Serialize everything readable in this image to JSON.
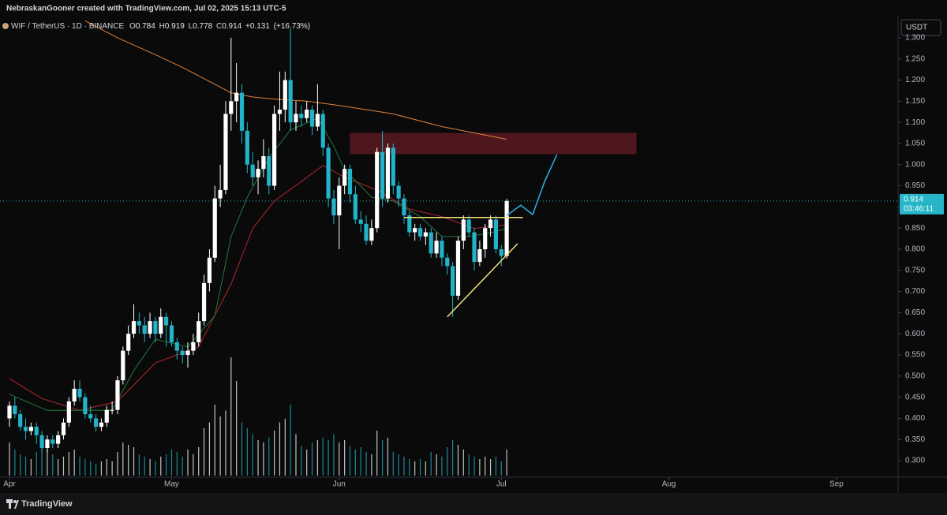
{
  "chart_data": {
    "type": "candlestick",
    "credit": "NebraskanGooner created with TradingView.com, Jul 02, 2025 15:13 UTC-5",
    "symbol": "WIF / TetherUS · 1D · BINANCE",
    "ohlc_labels": [
      "O",
      "H",
      "L",
      "C"
    ],
    "change": "+0.131",
    "change_pct": "(+16.73%)",
    "currency": "USDT",
    "countdown": "03:46:11",
    "brand": "TradingView",
    "up_color": "#ffffff",
    "down_color": "#22b3c9",
    "xlim": [
      -1.75,
      164.4
    ],
    "xticks": [
      {
        "value": 0,
        "label": "Apr"
      },
      {
        "value": 30,
        "label": "May"
      },
      {
        "value": 61,
        "label": "Jun"
      },
      {
        "value": 91,
        "label": "Jul"
      },
      {
        "value": 122,
        "label": "Aug"
      },
      {
        "value": 153,
        "label": "Sep"
      }
    ],
    "ylim": [
      0.261,
      1.352
    ],
    "yticks": [
      {
        "value": 0.3,
        "label": "0.300"
      },
      {
        "value": 0.35,
        "label": "0.350"
      },
      {
        "value": 0.4,
        "label": "0.400"
      },
      {
        "value": 0.45,
        "label": "0.450"
      },
      {
        "value": 0.5,
        "label": "0.500"
      },
      {
        "value": 0.55,
        "label": "0.550"
      },
      {
        "value": 0.6,
        "label": "0.600"
      },
      {
        "value": 0.65,
        "label": "0.650"
      },
      {
        "value": 0.7,
        "label": "0.700"
      },
      {
        "value": 0.75,
        "label": "0.750"
      },
      {
        "value": 0.8,
        "label": "0.800"
      },
      {
        "value": 0.85,
        "label": "0.850"
      },
      {
        "value": 0.9,
        "label": "0.900"
      },
      {
        "value": 0.95,
        "label": "0.950"
      },
      {
        "value": 1.0,
        "label": "1.000"
      },
      {
        "value": 1.05,
        "label": "1.050"
      },
      {
        "value": 1.1,
        "label": "1.100"
      },
      {
        "value": 1.15,
        "label": "1.150"
      },
      {
        "value": 1.2,
        "label": "1.200"
      },
      {
        "value": 1.25,
        "label": "1.250"
      },
      {
        "value": 1.3,
        "label": "1.300"
      }
    ],
    "open": [
      0.4,
      0.43,
      0.41,
      0.38,
      0.37,
      0.38,
      0.36,
      0.33,
      0.35,
      0.34,
      0.36,
      0.39,
      0.44,
      0.47,
      0.45,
      0.41,
      0.4,
      0.38,
      0.39,
      0.42,
      0.42,
      0.49,
      0.56,
      0.6,
      0.63,
      0.62,
      0.6,
      0.63,
      0.6,
      0.64,
      0.62,
      0.58,
      0.56,
      0.55,
      0.56,
      0.58,
      0.63,
      0.72,
      0.78,
      0.92,
      0.94,
      1.12,
      1.15,
      1.17,
      1.08,
      1.0,
      0.97,
      0.99,
      1.02,
      0.95,
      1.12,
      1.13,
      1.2,
      1.1,
      1.12,
      1.11,
      1.13,
      1.09,
      1.12,
      1.04,
      0.92,
      0.88,
      0.95,
      0.99,
      0.93,
      0.87,
      0.86,
      0.82,
      0.85,
      1.03,
      0.92,
      1.04,
      0.95,
      0.92,
      0.88,
      0.84,
      0.85,
      0.83,
      0.84,
      0.79,
      0.82,
      0.78,
      0.76,
      0.69,
      0.82,
      0.87,
      0.84,
      0.77,
      0.8,
      0.85,
      0.87,
      0.8,
      0.784
    ],
    "high": [
      0.44,
      0.45,
      0.42,
      0.4,
      0.39,
      0.39,
      0.37,
      0.36,
      0.36,
      0.37,
      0.4,
      0.45,
      0.49,
      0.49,
      0.46,
      0.43,
      0.41,
      0.4,
      0.43,
      0.44,
      0.5,
      0.57,
      0.62,
      0.67,
      0.65,
      0.64,
      0.65,
      0.64,
      0.66,
      0.65,
      0.63,
      0.59,
      0.57,
      0.58,
      0.6,
      0.65,
      0.74,
      0.8,
      0.95,
      1.0,
      1.15,
      1.3,
      1.24,
      1.19,
      1.1,
      1.03,
      1.01,
      1.06,
      1.04,
      1.14,
      1.22,
      1.22,
      1.32,
      1.15,
      1.14,
      1.15,
      1.14,
      1.19,
      1.13,
      1.05,
      0.94,
      0.97,
      1.0,
      1.0,
      0.95,
      0.89,
      0.88,
      0.87,
      1.04,
      1.08,
      1.05,
      1.05,
      0.96,
      0.93,
      0.89,
      0.86,
      0.86,
      0.85,
      0.85,
      0.84,
      0.83,
      0.79,
      0.77,
      0.83,
      0.88,
      0.88,
      0.85,
      0.82,
      0.86,
      0.88,
      0.88,
      0.81,
      0.919
    ],
    "low": [
      0.38,
      0.4,
      0.37,
      0.35,
      0.36,
      0.34,
      0.32,
      0.32,
      0.33,
      0.33,
      0.35,
      0.38,
      0.43,
      0.44,
      0.4,
      0.39,
      0.37,
      0.37,
      0.38,
      0.41,
      0.41,
      0.48,
      0.55,
      0.59,
      0.6,
      0.58,
      0.59,
      0.58,
      0.59,
      0.57,
      0.57,
      0.54,
      0.53,
      0.52,
      0.55,
      0.57,
      0.62,
      0.7,
      0.77,
      0.9,
      0.93,
      1.08,
      1.1,
      1.05,
      0.98,
      0.95,
      0.93,
      0.97,
      0.93,
      0.94,
      1.08,
      1.1,
      1.08,
      1.08,
      1.09,
      1.1,
      1.07,
      1.08,
      1.02,
      0.9,
      0.86,
      0.8,
      0.93,
      0.91,
      0.86,
      0.84,
      0.81,
      0.81,
      0.84,
      0.9,
      0.91,
      0.93,
      0.9,
      0.86,
      0.83,
      0.82,
      0.82,
      0.81,
      0.78,
      0.78,
      0.76,
      0.74,
      0.64,
      0.68,
      0.8,
      0.83,
      0.75,
      0.76,
      0.78,
      0.83,
      0.79,
      0.76,
      0.778
    ],
    "close": [
      0.43,
      0.41,
      0.38,
      0.37,
      0.38,
      0.36,
      0.33,
      0.35,
      0.34,
      0.36,
      0.39,
      0.44,
      0.47,
      0.45,
      0.41,
      0.4,
      0.38,
      0.39,
      0.42,
      0.42,
      0.49,
      0.56,
      0.6,
      0.63,
      0.62,
      0.6,
      0.63,
      0.6,
      0.64,
      0.62,
      0.58,
      0.56,
      0.55,
      0.56,
      0.58,
      0.63,
      0.72,
      0.78,
      0.92,
      0.94,
      1.12,
      1.15,
      1.17,
      1.08,
      1.0,
      0.97,
      0.99,
      1.02,
      0.95,
      1.12,
      1.13,
      1.2,
      1.1,
      1.12,
      1.11,
      1.13,
      1.09,
      1.12,
      1.04,
      0.92,
      0.88,
      0.95,
      0.99,
      0.93,
      0.87,
      0.86,
      0.82,
      0.85,
      1.03,
      0.92,
      1.04,
      0.95,
      0.92,
      0.88,
      0.84,
      0.85,
      0.83,
      0.84,
      0.79,
      0.82,
      0.78,
      0.76,
      0.69,
      0.82,
      0.87,
      0.84,
      0.77,
      0.8,
      0.85,
      0.87,
      0.8,
      0.784,
      0.914
    ],
    "volume": [
      28,
      22,
      18,
      16,
      14,
      20,
      30,
      22,
      18,
      14,
      16,
      20,
      22,
      16,
      14,
      12,
      10,
      12,
      14,
      12,
      20,
      28,
      26,
      24,
      18,
      16,
      14,
      12,
      16,
      18,
      22,
      20,
      16,
      22,
      18,
      24,
      40,
      45,
      60,
      50,
      55,
      100,
      80,
      45,
      40,
      35,
      30,
      28,
      32,
      38,
      45,
      48,
      60,
      35,
      25,
      22,
      28,
      30,
      32,
      30,
      35,
      28,
      30,
      25,
      22,
      24,
      20,
      18,
      38,
      30,
      32,
      20,
      18,
      16,
      14,
      12,
      14,
      12,
      20,
      18,
      16,
      24,
      30,
      26,
      22,
      18,
      16,
      14,
      16,
      14,
      16,
      12,
      22
    ],
    "lines": [
      {
        "color": "#e0823a",
        "x": [
          14,
          20,
          27,
          32,
          38,
          41,
          45,
          49,
          55,
          61,
          71,
          80,
          86,
          92
        ],
        "values": [
          1.34,
          1.3,
          1.26,
          1.23,
          1.19,
          1.17,
          1.16,
          1.155,
          1.15,
          1.14,
          1.12,
          1.09,
          1.075,
          1.06
        ]
      },
      {
        "color": "#b3262f",
        "x": [
          0,
          6,
          13,
          20,
          27,
          35,
          41,
          45,
          49,
          54,
          58,
          62,
          68,
          74,
          80,
          86,
          92
        ],
        "values": [
          0.494,
          0.447,
          0.419,
          0.44,
          0.531,
          0.569,
          0.718,
          0.849,
          0.914,
          0.96,
          0.998,
          0.97,
          0.94,
          0.895,
          0.877,
          0.849,
          0.858
        ]
      },
      {
        "color": "#1f7a3c",
        "x": [
          0,
          7,
          13,
          19,
          23,
          27,
          33,
          38,
          41,
          44,
          48,
          52,
          57,
          60,
          62,
          67,
          71,
          76,
          80,
          85,
          89,
          92
        ],
        "values": [
          0.457,
          0.419,
          0.419,
          0.419,
          0.513,
          0.587,
          0.569,
          0.643,
          0.83,
          0.923,
          1.016,
          1.082,
          1.11,
          1.044,
          0.988,
          0.923,
          0.914,
          0.877,
          0.83,
          0.83,
          0.839,
          0.849
        ]
      }
    ],
    "zone": {
      "color": "#5a1a22",
      "x": [
        63,
        116
      ],
      "y": [
        1.025,
        1.075
      ]
    },
    "trendlines": [
      {
        "color": "#f2e27a",
        "x": [
          73,
          95
        ],
        "y": [
          0.875,
          0.875
        ]
      },
      {
        "color": "#f2e27a",
        "x": [
          81,
          94
        ],
        "y": [
          0.64,
          0.813
        ]
      }
    ],
    "projection": {
      "color": "#29a9e0",
      "x": [
        92,
        94.6,
        96.8,
        99,
        101.3
      ],
      "values": [
        0.88,
        0.904,
        0.882,
        0.96,
        1.024
      ]
    },
    "last_price_color": "#26b6c8"
  }
}
